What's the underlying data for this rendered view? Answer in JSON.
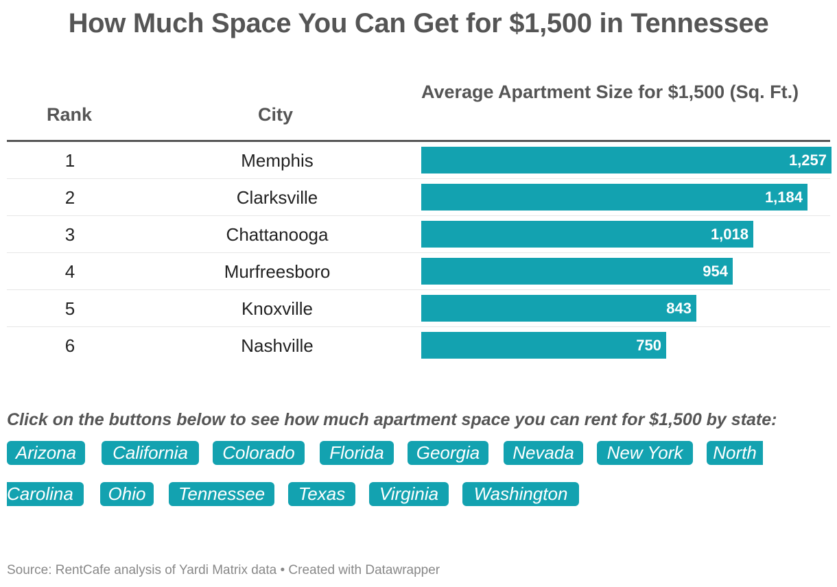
{
  "title": "How Much Space You Can Get for $1,500 in Tennessee",
  "table": {
    "headers": {
      "rank": "Rank",
      "city": "City",
      "size": "Average Apartment Size for $1,500 (Sq. Ft.)"
    }
  },
  "chart_data": {
    "type": "bar",
    "title": "How Much Space You Can Get for $1,500 in Tennessee",
    "xlabel": "Average Apartment Size for $1,500 (Sq. Ft.)",
    "ylabel": "City",
    "ranks": [
      "1",
      "2",
      "3",
      "4",
      "5",
      "6"
    ],
    "categories": [
      "Memphis",
      "Clarksville",
      "Chattanooga",
      "Murfreesboro",
      "Knoxville",
      "Nashville"
    ],
    "values": [
      1257,
      1184,
      1018,
      954,
      843,
      750
    ],
    "value_labels": [
      "1,257",
      "1,184",
      "1,018",
      "954",
      "843",
      "750"
    ],
    "xlim": [
      0,
      1320
    ],
    "bar_color": "#13a2b0"
  },
  "prompt": "Click on the buttons below to see how much apartment space you can rent for $1,500 by state:",
  "buttons": {
    "arizona": "Arizona",
    "california": "California",
    "colorado": "Colorado",
    "florida": "Florida",
    "georgia": "Georgia",
    "nevada": "Nevada",
    "new_york": "New York",
    "north_carolina_a": "North",
    "north_carolina_b": "Carolina",
    "ohio": "Ohio",
    "tennessee": "Tennessee",
    "texas": "Texas",
    "virginia": "Virginia",
    "washington": "Washington"
  },
  "footer": "Source: RentCafe analysis of Yardi Matrix data • Created with Datawrapper",
  "colors": {
    "accent": "#13a2b0",
    "heading": "#555555",
    "footer": "#888888"
  }
}
